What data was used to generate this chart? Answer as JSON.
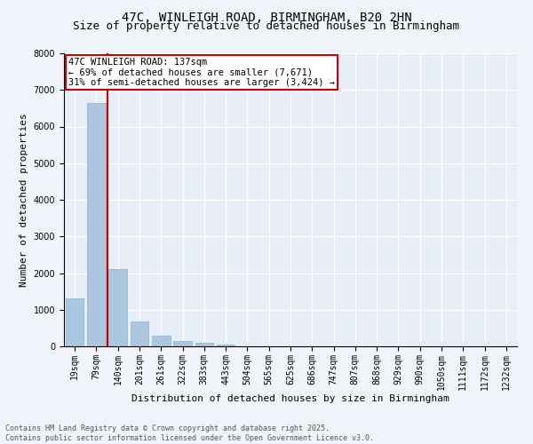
{
  "title_line1": "47C, WINLEIGH ROAD, BIRMINGHAM, B20 2HN",
  "title_line2": "Size of property relative to detached houses in Birmingham",
  "xlabel": "Distribution of detached houses by size in Birmingham",
  "ylabel": "Number of detached properties",
  "categories": [
    "19sqm",
    "79sqm",
    "140sqm",
    "201sqm",
    "261sqm",
    "322sqm",
    "383sqm",
    "443sqm",
    "504sqm",
    "565sqm",
    "625sqm",
    "686sqm",
    "747sqm",
    "807sqm",
    "868sqm",
    "929sqm",
    "990sqm",
    "1050sqm",
    "1111sqm",
    "1172sqm",
    "1232sqm"
  ],
  "values": [
    1320,
    6650,
    2100,
    680,
    300,
    140,
    90,
    60,
    0,
    0,
    0,
    0,
    0,
    0,
    0,
    0,
    0,
    0,
    0,
    0,
    0
  ],
  "bar_color": "#adc6e0",
  "bar_edge_color": "#8ab0cc",
  "vline_color": "#cc0000",
  "annotation_text": "47C WINLEIGH ROAD: 137sqm\n← 69% of detached houses are smaller (7,671)\n31% of semi-detached houses are larger (3,424) →",
  "annotation_box_color": "#ffffff",
  "annotation_box_edge": "#cc0000",
  "ylim": [
    0,
    8000
  ],
  "yticks": [
    0,
    1000,
    2000,
    3000,
    4000,
    5000,
    6000,
    7000,
    8000
  ],
  "bg_color": "#f0f4fa",
  "plot_bg_color": "#e8eef8",
  "footer_line1": "Contains HM Land Registry data © Crown copyright and database right 2025.",
  "footer_line2": "Contains public sector information licensed under the Open Government Licence v3.0.",
  "title_fontsize": 10,
  "subtitle_fontsize": 9,
  "axis_label_fontsize": 8,
  "tick_fontsize": 7,
  "annotation_fontsize": 7.5,
  "footer_fontsize": 6
}
